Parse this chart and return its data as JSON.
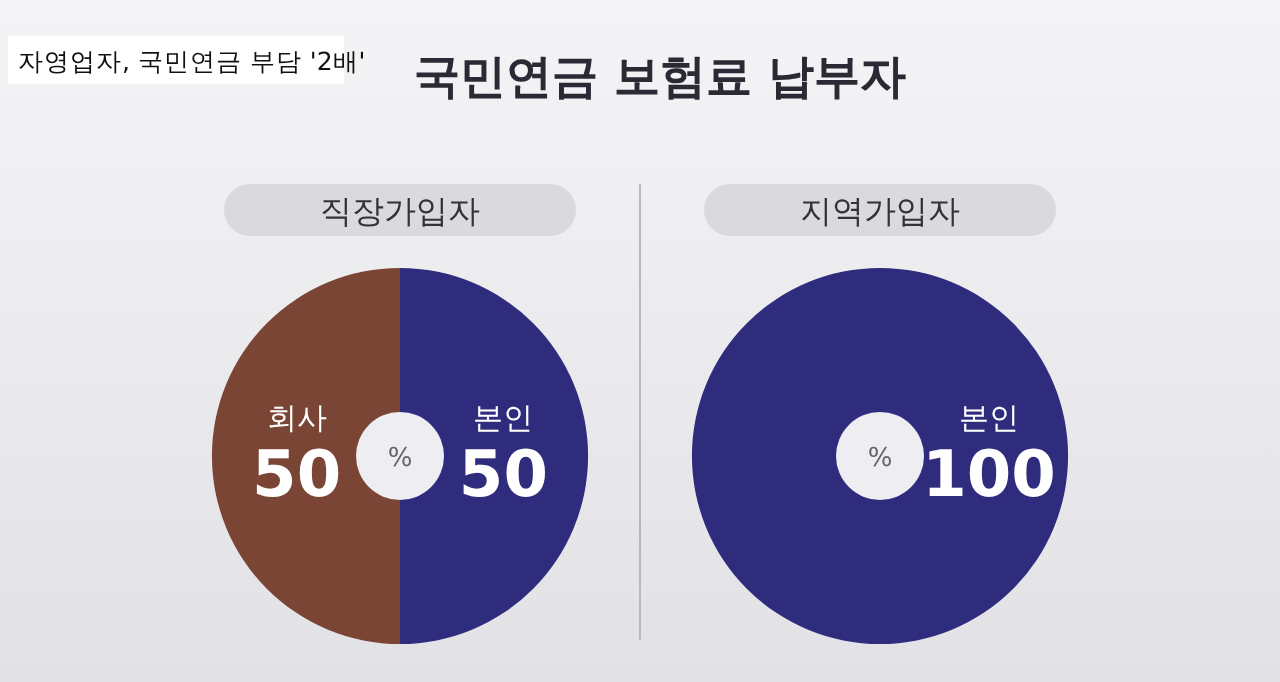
{
  "chart_data": [
    {
      "type": "other",
      "title": "국민연금 보험료 납부자",
      "annotations": [
        "자영업자, 국민연금 부담 '2배'"
      ]
    },
    {
      "type": "donut",
      "title": "직장가입자",
      "categories": [
        "회사",
        "본인"
      ],
      "values": [
        50,
        50
      ],
      "colors": [
        "#7b4535",
        "#2f2b7d"
      ],
      "data_labels": true,
      "annotations": [
        "%"
      ]
    },
    {
      "type": "donut",
      "title": "지역가입자",
      "categories": [
        "본인"
      ],
      "values": [
        100
      ],
      "colors": [
        "#2f2b7d"
      ],
      "data_labels": true,
      "annotations": [
        "%"
      ]
    }
  ]
}
